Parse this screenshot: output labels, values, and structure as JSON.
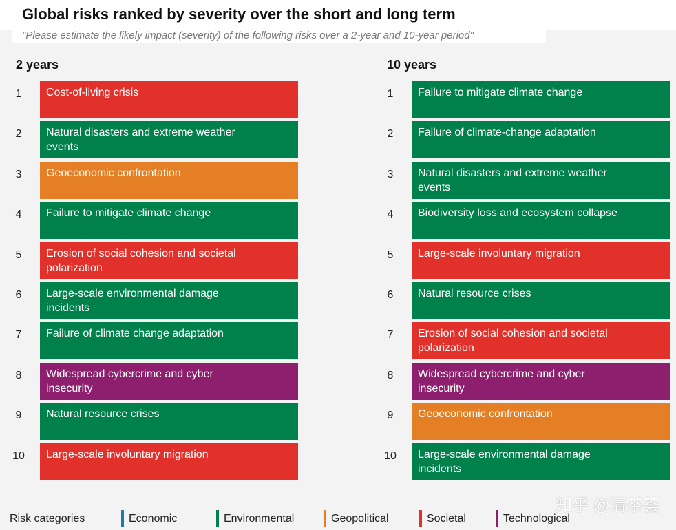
{
  "header": {
    "title": "Global risks ranked by severity over the short and long term",
    "subtitle": "\"Please estimate the likely impact (severity) of the following risks over a 2-year and 10-year period\""
  },
  "columns": [
    {
      "heading": "2 years",
      "items": [
        {
          "rank": 1,
          "label": "Cost-of-living crisis",
          "color": "#e2302a"
        },
        {
          "rank": 2,
          "label": "Natural disasters and extreme weather events",
          "color": "#00804b"
        },
        {
          "rank": 3,
          "label": "Geoeconomic confrontation",
          "color": "#e57f26"
        },
        {
          "rank": 4,
          "label": "Failure to mitigate climate change",
          "color": "#00804b"
        },
        {
          "rank": 5,
          "label": "Erosion of social cohesion and societal polarization",
          "color": "#e2302a"
        },
        {
          "rank": 6,
          "label": "Large-scale environmental damage incidents",
          "color": "#00804b"
        },
        {
          "rank": 7,
          "label": "Failure of climate change adaptation",
          "color": "#00804b"
        },
        {
          "rank": 8,
          "label": "Widespread cybercrime and cyber insecurity",
          "color": "#8d1f6e"
        },
        {
          "rank": 9,
          "label": "Natural resource crises",
          "color": "#00804b"
        },
        {
          "rank": 10,
          "label": "Large-scale involuntary migration",
          "color": "#e2302a"
        }
      ]
    },
    {
      "heading": "10 years",
      "items": [
        {
          "rank": 1,
          "label": "Failure to mitigate climate change",
          "color": "#00804b"
        },
        {
          "rank": 2,
          "label": "Failure of climate-change adaptation",
          "color": "#00804b"
        },
        {
          "rank": 3,
          "label": "Natural disasters and extreme weather events",
          "color": "#00804b"
        },
        {
          "rank": 4,
          "label": "Biodiversity loss and ecosystem collapse",
          "color": "#00804b"
        },
        {
          "rank": 5,
          "label": "Large-scale involuntary migration",
          "color": "#e2302a"
        },
        {
          "rank": 6,
          "label": "Natural resource crises",
          "color": "#00804b"
        },
        {
          "rank": 7,
          "label": "Erosion of social cohesion and societal polarization",
          "color": "#e2302a"
        },
        {
          "rank": 8,
          "label": "Widespread cybercrime and cyber insecurity",
          "color": "#8d1f6e"
        },
        {
          "rank": 9,
          "label": "Geoeconomic confrontation",
          "color": "#e57f26"
        },
        {
          "rank": 10,
          "label": "Large-scale environmental damage incidents",
          "color": "#00804b"
        }
      ]
    }
  ],
  "legend": {
    "title": "Risk categories",
    "items": [
      {
        "label": "Economic",
        "color": "#1f77b8"
      },
      {
        "label": "Environmental",
        "color": "#00804b"
      },
      {
        "label": "Geopolitical",
        "color": "#e57f26"
      },
      {
        "label": "Societal",
        "color": "#e2302a"
      },
      {
        "label": "Technological",
        "color": "#8d1f6e"
      }
    ]
  },
  "watermark": "知乎 @清茶荟"
}
